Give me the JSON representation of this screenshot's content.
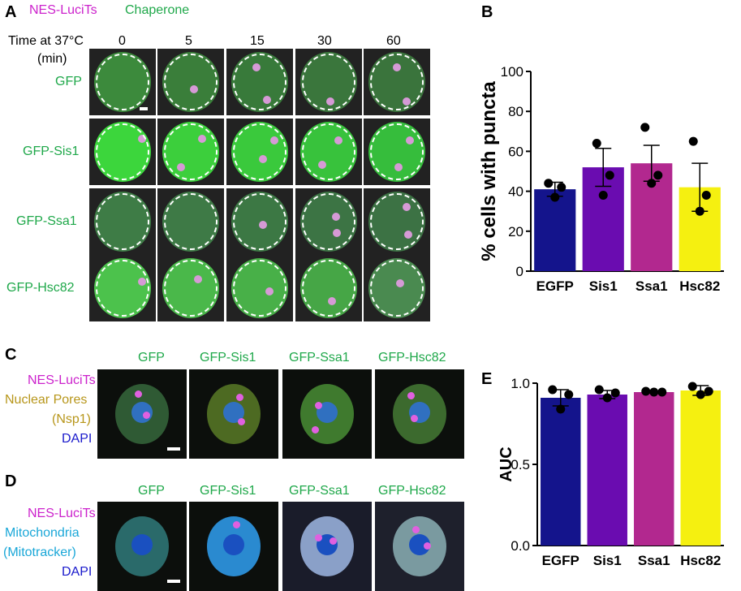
{
  "panel_letters": [
    "A",
    "B",
    "C",
    "D",
    "E"
  ],
  "panelA": {
    "legend": {
      "luci": "NES-LuciTs",
      "chap": "Chaperone"
    },
    "time_label_line1": "Time at 37°C",
    "time_label_line2": "(min)",
    "times": [
      "0",
      "5",
      "15",
      "30",
      "60"
    ],
    "rows": [
      "GFP",
      "GFP-Sis1",
      "GFP-Ssa1",
      "GFP-Hsc82"
    ]
  },
  "panelC": {
    "columns": [
      "GFP",
      "GFP-Sis1",
      "GFP-Ssa1",
      "GFP-Hsc82"
    ],
    "legend": [
      "NES-LuciTs",
      "Nuclear Pores",
      "(Nsp1)",
      "DAPI"
    ]
  },
  "panelD": {
    "columns": [
      "GFP",
      "GFP-Sis1",
      "GFP-Ssa1",
      "GFP-Hsc82"
    ],
    "legend": [
      "NES-LuciTs",
      "Mitochondria",
      "(Mitotracker)",
      "DAPI"
    ]
  },
  "chart_data": [
    {
      "panel": "B",
      "type": "bar",
      "categories": [
        "EGFP",
        "Sis1",
        "Ssa1",
        "Hsc82"
      ],
      "values": [
        41,
        52,
        54,
        42
      ],
      "errors": [
        3.5,
        9.5,
        9,
        12
      ],
      "points": [
        [
          44,
          42,
          37
        ],
        [
          64,
          48,
          38
        ],
        [
          72,
          48,
          44
        ],
        [
          65,
          38,
          30
        ]
      ],
      "ylabel": "% cells with puncta",
      "xlabel": "",
      "ylim": [
        0,
        100
      ],
      "yticks": [
        0,
        20,
        40,
        60,
        80,
        100
      ],
      "colors": [
        "#14148c",
        "#6a0cb0",
        "#b2288f",
        "#f5f010"
      ]
    },
    {
      "panel": "E",
      "type": "bar",
      "categories": [
        "EGFP",
        "Sis1",
        "Ssa1",
        "Hsc82"
      ],
      "values": [
        0.91,
        0.93,
        0.945,
        0.955
      ],
      "errors": [
        0.05,
        0.025,
        0.005,
        0.03
      ],
      "points": [
        [
          0.96,
          0.84,
          0.93
        ],
        [
          0.96,
          0.91,
          0.94
        ],
        [
          0.95,
          0.945,
          0.945
        ],
        [
          0.98,
          0.93,
          0.95
        ]
      ],
      "ylabel": "AUC",
      "xlabel": "",
      "ylim": [
        0,
        1
      ],
      "yticks": [
        "0.0",
        "0.5",
        "1.0"
      ],
      "colors": [
        "#14148c",
        "#6a0cb0",
        "#b2288f",
        "#f5f010"
      ]
    }
  ]
}
